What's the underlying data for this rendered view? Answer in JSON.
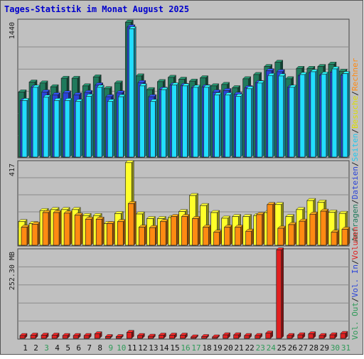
{
  "chart_data": {
    "type": "bar",
    "title": "Tages-Statistik im Monat August 2025",
    "categories": [
      "1",
      "2",
      "3",
      "4",
      "5",
      "6",
      "7",
      "8",
      "9",
      "10",
      "11",
      "12",
      "13",
      "14",
      "15",
      "16",
      "17",
      "18",
      "19",
      "20",
      "21",
      "22",
      "23",
      "24",
      "25",
      "26",
      "27",
      "28",
      "29",
      "30",
      "31"
    ],
    "weekend_days": [
      "3",
      "9",
      "10",
      "16",
      "17",
      "23",
      "24",
      "30",
      "31"
    ],
    "colors": {
      "title": "#0000cc",
      "anfragen": "#1f7a5c",
      "dateien": "#2a44d8",
      "seiten": "#22ddff",
      "besuche": "#ffff2a",
      "rechner": "#ff8a12",
      "volumen": "#e02020",
      "weekend_label": "#2e9a58",
      "panel_bg": "#c0c0c0"
    },
    "panels": [
      {
        "max_label": "1440",
        "max_value": 1440,
        "series": [
          {
            "name": "Anfragen",
            "values": [
              690,
              795,
              785,
              745,
              835,
              835,
              755,
              850,
              725,
              785,
              1430,
              860,
              715,
              800,
              845,
              825,
              805,
              840,
              755,
              770,
              735,
              830,
              875,
              960,
              1005,
              830,
              940,
              940,
              960,
              985,
              910
            ]
          },
          {
            "name": "Dateien",
            "values": [
              600,
              740,
              690,
              660,
              680,
              660,
              685,
              765,
              640,
              680,
              1380,
              790,
              640,
              720,
              765,
              760,
              735,
              745,
              690,
              705,
              665,
              735,
              790,
              915,
              905,
              740,
              865,
              895,
              870,
              900,
              870
            ]
          },
          {
            "name": "Seiten",
            "values": [
              600,
              740,
              635,
              600,
              600,
              590,
              645,
              740,
              590,
              640,
              1360,
              755,
              590,
              715,
              765,
              755,
              740,
              740,
              660,
              660,
              645,
              725,
              785,
              865,
              860,
              740,
              875,
              905,
              880,
              935,
              885
            ]
          }
        ]
      },
      {
        "max_label": "417",
        "max_value": 417,
        "series": [
          {
            "name": "Besuche",
            "values": [
              118,
              108,
              173,
              178,
              178,
              178,
              148,
              148,
              108,
              158,
              412,
              156,
              133,
              133,
              138,
              168,
              248,
              198,
              163,
              135,
              143,
              143,
              148,
              163,
              203,
              143,
              178,
              223,
              215,
              165,
              159
            ]
          },
          {
            "name": "Rechner",
            "values": [
              90,
              105,
              163,
              163,
              160,
              150,
              130,
              130,
              108,
              118,
              208,
              90,
              88,
              118,
              143,
              143,
              133,
              90,
              65,
              90,
              90,
              70,
              153,
              203,
              85,
              103,
              120,
              155,
              170,
              65,
              80
            ]
          }
        ]
      },
      {
        "max_label": "252.30 MB",
        "max_value": 252.3,
        "series": [
          {
            "name": "Volumen",
            "values": [
              8,
              9,
              9,
              9,
              8,
              8,
              8,
              13,
              5,
              5,
              17,
              8,
              6,
              9,
              9,
              9,
              4,
              5,
              4,
              10,
              10,
              8,
              8,
              15,
              252.3,
              8,
              10,
              13,
              8,
              10,
              14
            ]
          }
        ]
      }
    ]
  },
  "legend": {
    "top": [
      {
        "text": "Anfragen",
        "color": "#1f7a5c"
      },
      {
        "text": "/",
        "color": "#222222"
      },
      {
        "text": "Dateien",
        "color": "#2a44d8"
      },
      {
        "text": "/",
        "color": "#222222"
      },
      {
        "text": "Seiten",
        "color": "#22c8ee"
      },
      {
        "text": "/",
        "color": "#222222"
      },
      {
        "text": "Besuche",
        "color": "#dddd00"
      },
      {
        "text": "/",
        "color": "#222222"
      },
      {
        "text": "Rechner",
        "color": "#ff8a12"
      }
    ],
    "bottom": [
      {
        "text": "Vol. Out",
        "color": "#2e9a58"
      },
      {
        "text": "/",
        "color": "#222222"
      },
      {
        "text": "Vol. In",
        "color": "#2a44d8"
      },
      {
        "text": "/",
        "color": "#222222"
      },
      {
        "text": "Volumen",
        "color": "#e02020"
      }
    ]
  }
}
